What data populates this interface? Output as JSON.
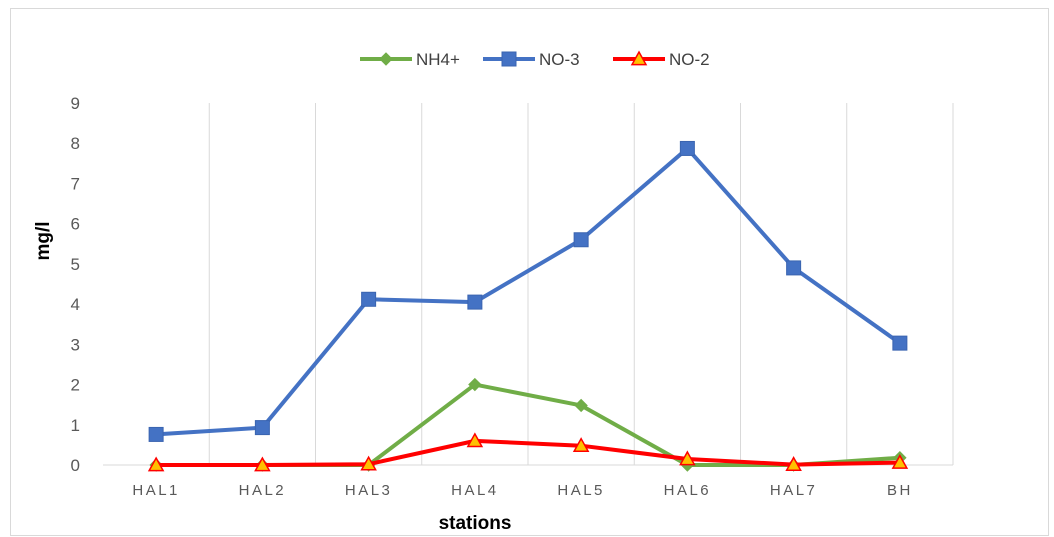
{
  "chart_data": {
    "type": "line",
    "title": "",
    "xlabel": "stations",
    "ylabel": "mg/l",
    "categories": [
      "HAL1",
      "HAL2",
      "HAL3",
      "HAL4",
      "HAL5",
      "HAL6",
      "HAL7",
      "BH"
    ],
    "ylim": [
      0,
      9
    ],
    "yticks": [
      0,
      1,
      2,
      3,
      4,
      5,
      6,
      7,
      8,
      9
    ],
    "grid": "vertical",
    "legend_position": "top",
    "series": [
      {
        "name": "NH4+",
        "color": "#70ad47",
        "marker": "diamond",
        "values": [
          0,
          0,
          0,
          2.0,
          1.48,
          0,
          0,
          0.18
        ]
      },
      {
        "name": "NO-3",
        "color": "#4472c4",
        "marker": "square",
        "values": [
          0.76,
          0.93,
          4.12,
          4.05,
          5.6,
          7.87,
          4.9,
          3.03
        ]
      },
      {
        "name": "NO-2",
        "color": "#ff0000",
        "marker": "triangle",
        "marker_fill": "#ffc000",
        "values": [
          0,
          0,
          0.02,
          0.6,
          0.48,
          0.15,
          0.01,
          0.06
        ]
      }
    ]
  }
}
